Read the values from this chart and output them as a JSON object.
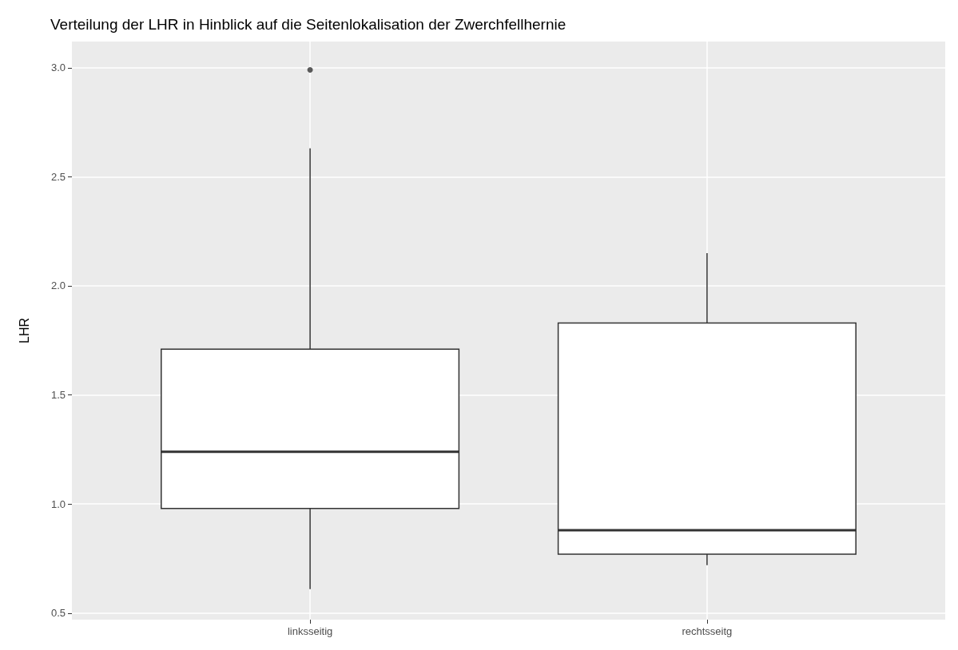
{
  "chart_data": {
    "type": "box",
    "title": "Verteilung der LHR in Hinblick auf die Seitenlokalisation der Zwerchfellhernie",
    "ylabel": "LHR",
    "categories": [
      "linksseitig",
      "rechtsseitg"
    ],
    "boxes": [
      {
        "low": 0.61,
        "q1": 0.98,
        "median": 1.24,
        "q3": 1.71,
        "high": 2.63,
        "outliers": [
          2.99
        ]
      },
      {
        "low": 0.72,
        "q1": 0.77,
        "median": 0.88,
        "q3": 1.83,
        "high": 2.15
      }
    ],
    "ylim": [
      0.47,
      3.12
    ],
    "yticks": [
      {
        "value": 0.5,
        "label": "0.5"
      },
      {
        "value": 1,
        "label": "1.0"
      },
      {
        "value": 1.5,
        "label": "1.5"
      },
      {
        "value": 2,
        "label": "2.0"
      },
      {
        "value": 2.5,
        "label": "2.5"
      },
      {
        "value": 3,
        "label": "3.0"
      }
    ],
    "grid": true
  }
}
